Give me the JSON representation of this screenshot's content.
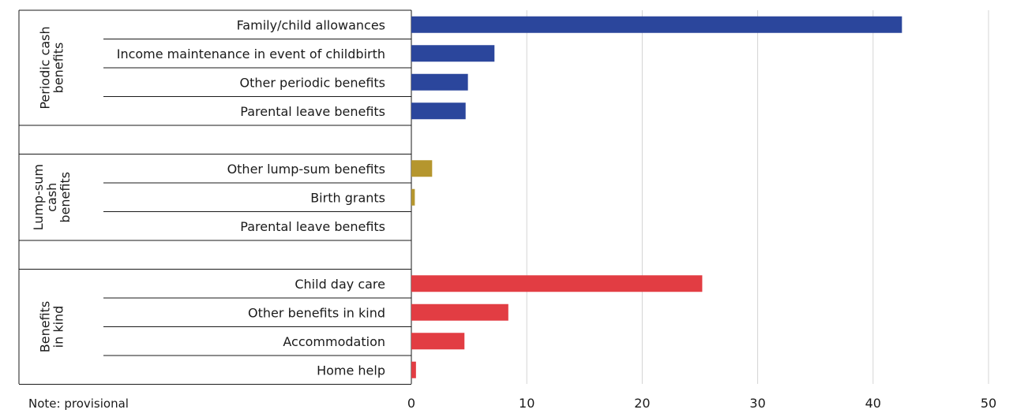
{
  "chart_data": {
    "type": "bar",
    "orientation": "horizontal",
    "groups": [
      {
        "name": "Periodic cash benefits",
        "label_lines": [
          "Periodic cash",
          "benefits"
        ],
        "color": "#2b469c",
        "categories": [
          "Family/child allowances",
          "Income maintenance in event of childbirth",
          "Other periodic benefits",
          "Parental leave benefits"
        ],
        "values": [
          42.5,
          7.2,
          4.9,
          4.7
        ]
      },
      {
        "name": "Lump-sum cash benefits",
        "label_lines": [
          "Lump-sum",
          "cash",
          "benefits"
        ],
        "color": "#b5962e",
        "categories": [
          "Other lump-sum benefits",
          "Birth grants",
          "Parental leave benefits"
        ],
        "values": [
          1.8,
          0.3,
          0
        ]
      },
      {
        "name": "Benefits in kind",
        "label_lines": [
          "Benefits",
          "in kind"
        ],
        "color": "#e23d43",
        "categories": [
          "Child day care",
          "Other benefits in kind",
          "Accommodation",
          "Home help"
        ],
        "values": [
          25.2,
          8.4,
          4.6,
          0.4
        ]
      }
    ],
    "xlim": [
      0,
      50
    ],
    "xticks": [
      0,
      10,
      20,
      30,
      40,
      50
    ],
    "grid": true,
    "xlabel": "",
    "ylabel": ""
  },
  "note": "Note: provisional"
}
